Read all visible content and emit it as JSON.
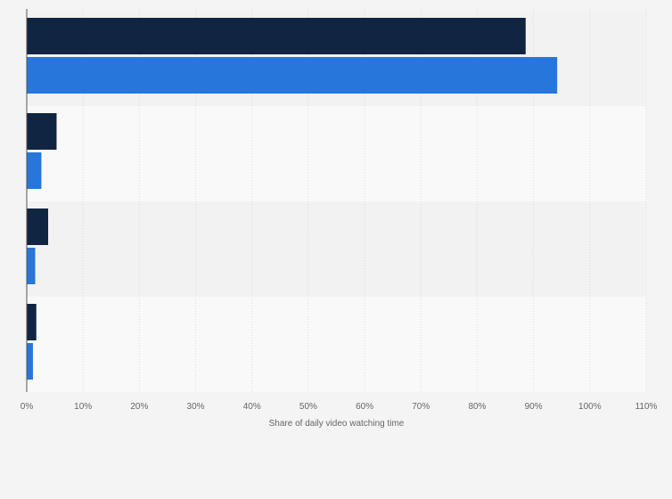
{
  "chart_data": {
    "type": "bar",
    "orientation": "horizontal",
    "categories": [
      "",
      "",
      "",
      ""
    ],
    "series": [
      {
        "color": "#0f2541",
        "values": [
          88.6,
          5.3,
          3.8,
          1.7
        ]
      },
      {
        "color": "#2776dc",
        "values": [
          94.2,
          2.6,
          1.5,
          1.1
        ]
      }
    ],
    "title": "",
    "xlabel": "Share of daily video watching time",
    "ylabel": "",
    "xlim": [
      0,
      110
    ],
    "xticks": [
      "0%",
      "10%",
      "20%",
      "30%",
      "40%",
      "50%",
      "60%",
      "70%",
      "80%",
      "90%",
      "100%",
      "110%"
    ],
    "grid": true,
    "legend": "none"
  }
}
